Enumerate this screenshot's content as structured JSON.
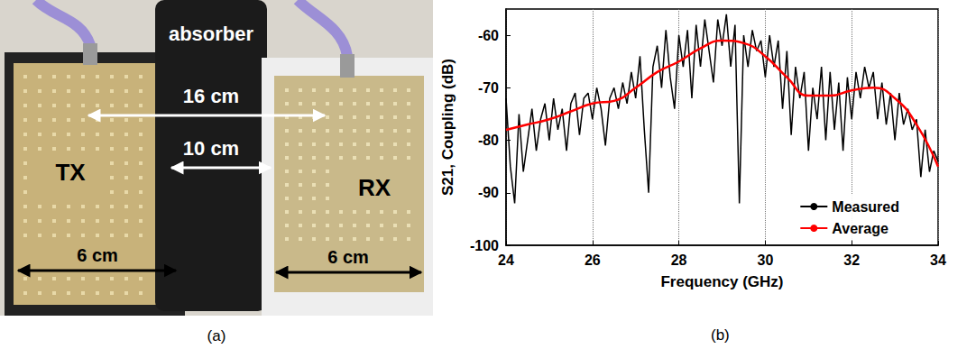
{
  "figure": {
    "panels": [
      {
        "label": "(a)",
        "photo": {
          "absorber": "absorber",
          "tx": "TX",
          "rx": "RX",
          "distances": [
            "16 cm",
            "10 cm"
          ],
          "widths": [
            "6 cm",
            "6 cm"
          ]
        }
      },
      {
        "label": "(b)"
      }
    ]
  },
  "chart_data": {
    "type": "line",
    "x_label": "Frequency (GHz)",
    "y_label": "S21, Coupling (dB)",
    "xlim": [
      24,
      34
    ],
    "xticks": [
      24,
      26,
      28,
      30,
      32,
      34
    ],
    "ylim": [
      -100,
      -55
    ],
    "yticks": [
      -100,
      -90,
      -80,
      -70,
      -60
    ],
    "grid": "x",
    "legend": "lower right",
    "series": [
      {
        "name": "Measured",
        "color": "#000000",
        "x": [
          24.0,
          24.1,
          24.2,
          24.3,
          24.4,
          24.5,
          24.6,
          24.7,
          24.8,
          24.9,
          25.0,
          25.1,
          25.2,
          25.3,
          25.4,
          25.5,
          25.6,
          25.7,
          25.8,
          25.9,
          26.0,
          26.1,
          26.2,
          26.3,
          26.4,
          26.5,
          26.6,
          26.7,
          26.8,
          26.9,
          27.0,
          27.1,
          27.2,
          27.3,
          27.4,
          27.5,
          27.6,
          27.7,
          27.8,
          27.9,
          28.0,
          28.1,
          28.2,
          28.3,
          28.4,
          28.5,
          28.6,
          28.7,
          28.8,
          28.9,
          29.0,
          29.1,
          29.2,
          29.3,
          29.4,
          29.5,
          29.6,
          29.7,
          29.8,
          29.9,
          30.0,
          30.1,
          30.2,
          30.3,
          30.4,
          30.5,
          30.6,
          30.7,
          30.8,
          30.9,
          31.0,
          31.1,
          31.2,
          31.3,
          31.4,
          31.5,
          31.6,
          31.7,
          31.8,
          31.9,
          32.0,
          32.1,
          32.2,
          32.3,
          32.4,
          32.5,
          32.6,
          32.7,
          32.8,
          32.9,
          33.0,
          33.1,
          33.2,
          33.3,
          33.4,
          33.5,
          33.6,
          33.7,
          33.8,
          33.9,
          34.0
        ],
        "values": [
          -72,
          -85,
          -92,
          -75,
          -86,
          -80,
          -74,
          -82,
          -76,
          -73,
          -80,
          -72,
          -78,
          -74,
          -82,
          -73,
          -71,
          -79,
          -72,
          -71,
          -76,
          -70,
          -74,
          -81,
          -72,
          -70,
          -74,
          -69,
          -73,
          -67,
          -72,
          -64,
          -78,
          -90,
          -66,
          -62,
          -70,
          -59,
          -68,
          -74,
          -60,
          -66,
          -59,
          -72,
          -58,
          -66,
          -57,
          -63,
          -69,
          -57,
          -62,
          -56,
          -66,
          -58,
          -92,
          -60,
          -66,
          -59,
          -63,
          -61,
          -68,
          -60,
          -66,
          -61,
          -74,
          -63,
          -79,
          -66,
          -72,
          -67,
          -82,
          -70,
          -76,
          -66,
          -80,
          -67,
          -78,
          -69,
          -82,
          -68,
          -76,
          -67,
          -72,
          -66,
          -70,
          -67,
          -76,
          -69,
          -77,
          -71,
          -80,
          -71,
          -77,
          -74,
          -78,
          -76,
          -87,
          -78,
          -86,
          -82,
          -84
        ]
      },
      {
        "name": "Average",
        "color": "#ff0000",
        "x": [
          24,
          24.5,
          25,
          25.5,
          26,
          26.5,
          27,
          27.5,
          28,
          28.5,
          29,
          29.5,
          30,
          30.5,
          31,
          31.5,
          32,
          32.5,
          33,
          33.5,
          34
        ],
        "values": [
          -78,
          -77,
          -76,
          -74.5,
          -73,
          -72.5,
          -70,
          -67,
          -65,
          -62.5,
          -61,
          -61.5,
          -64,
          -68,
          -71.5,
          -71.5,
          -70.5,
          -70,
          -72,
          -77,
          -85
        ]
      }
    ]
  }
}
